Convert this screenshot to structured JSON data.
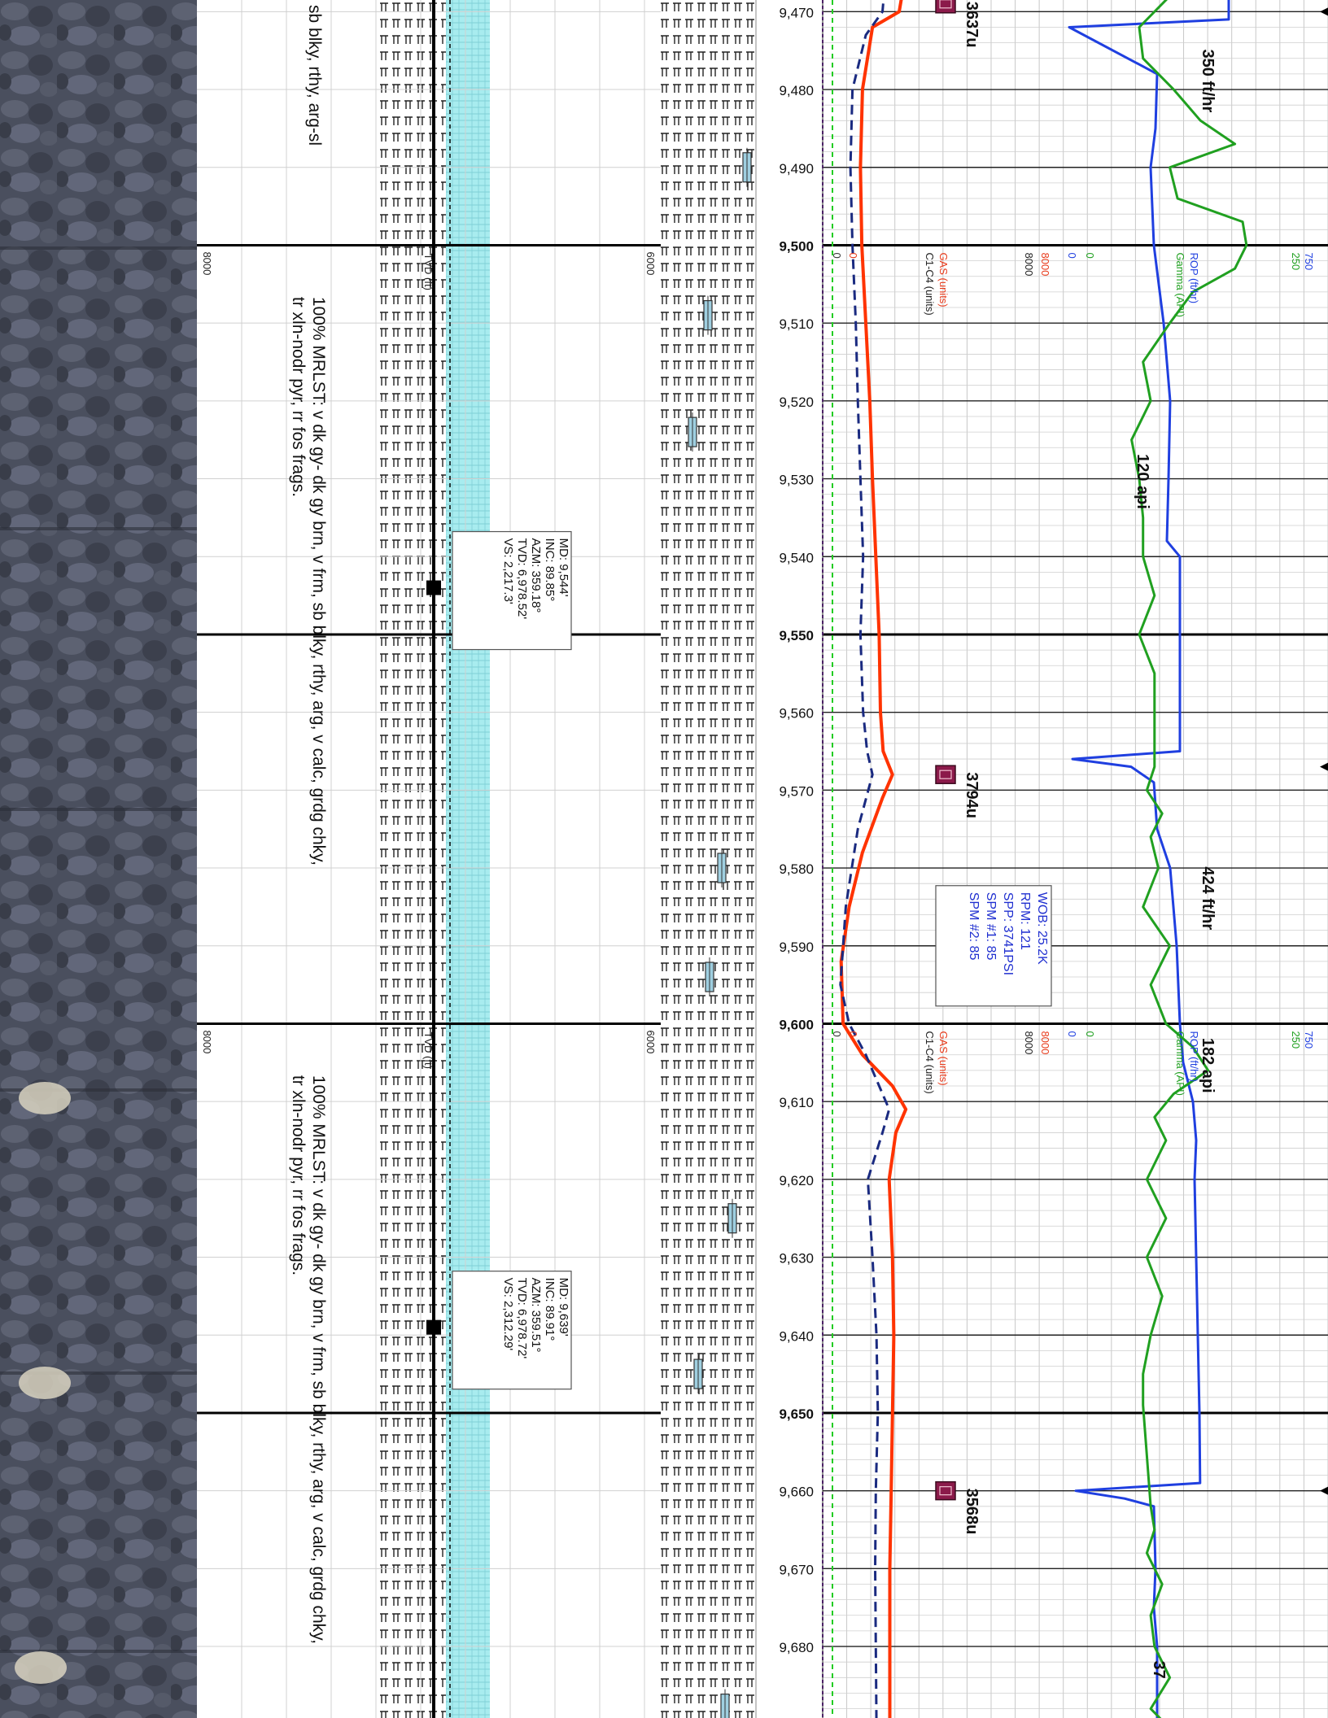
{
  "chart_data": {
    "type": "line",
    "title": "",
    "xlabel": "",
    "ylabel": "",
    "orientation": "vertical-depth-log",
    "depth_range": [
      9465,
      9690
    ],
    "depth_ticks": [
      "9,470",
      "9,480",
      "9,490",
      "9,500",
      "9,510",
      "9,520",
      "9,530",
      "9,540",
      "9,550",
      "9,560",
      "9,570",
      "9,580",
      "9,590",
      "9,600",
      "9,610",
      "9,620",
      "9,630",
      "9,640",
      "9,650",
      "9,660",
      "9,670",
      "9,680"
    ],
    "bold_depths": [
      "9,500",
      "9,550",
      "9,600",
      "9,650"
    ],
    "header_blocks": [
      {
        "depth": 9500,
        "tvd_label": "TVD (ft)",
        "tvd_left": "8000",
        "tvd_right": "6000",
        "gas_label": "GAS (units)",
        "c1c4_label": "C1-C4 (units)",
        "gas_min": "0",
        "gas_max": "8000",
        "c1c4_max": "8000",
        "rop_label": "ROP (ft/hr)",
        "gamma_label": "Gamma (API)",
        "rop_min": "0",
        "rop_max": "750",
        "gamma_max": "250"
      },
      {
        "depth": 9600,
        "tvd_label": "TVD (ft)",
        "tvd_left": "8000",
        "tvd_right": "6000",
        "gas_label": "GAS (units)",
        "c1c4_label": "C1-C4 (units)",
        "gas_min": "0",
        "gas_max": "8000",
        "c1c4_max": "8000",
        "rop_label": "ROP (ft/hr)",
        "gamma_label": "Gamma (API)",
        "rop_min": "0",
        "rop_max": "750",
        "gamma_max": "250"
      }
    ],
    "lithology_descriptions": [
      {
        "depth": 9480,
        "lines": [
          "sb blky, rthy, arg-sl"
        ]
      },
      {
        "depth": 9550,
        "lines": [
          "100% MRLST: v dk gy- dk gy brn, v frm, sb blky, rthy, arg, v calc, grdg chky,",
          "tr xln-nodr pyr, rr fos frags."
        ]
      },
      {
        "depth": 9650,
        "lines": [
          "100% MRLST: v dk gy- dk gy brn, v frm, sb blky, rthy, arg, v calc, grdg chky,",
          "tr xln-nodr pyr, rr fos frags."
        ]
      }
    ],
    "survey_boxes": [
      {
        "depth": 9544,
        "lines": [
          "MD: 9,544'",
          "INC: 89.85°",
          "AZM: 359.18°",
          "TVD: 6,978.52'",
          "VS: 2,217.3'"
        ]
      },
      {
        "depth": 9639,
        "lines": [
          "MD: 9,639'",
          "INC: 89.91°",
          "AZM: 359.51°",
          "TVD: 6,978.72'",
          "VS: 2,312.29'"
        ]
      }
    ],
    "drilling_params": {
      "depth": 9590,
      "lines": [
        "WOB: 25.2K",
        "RPM: 121",
        "SPP: 3741PSI",
        "SPM #1: 85",
        "SPM #2: 85"
      ]
    },
    "gas_peaks": [
      {
        "depth": 9469,
        "label": "3637u"
      },
      {
        "depth": 9568,
        "label": "3794u"
      },
      {
        "depth": 9660,
        "label": "3568u"
      }
    ],
    "annotations": [
      {
        "depth": 9479,
        "label": "350 ft/hr",
        "x_value": 475
      },
      {
        "depth": 9531,
        "label": "120 api",
        "x_value": 40
      },
      {
        "depth": 9584,
        "label": "424 ft/hr",
        "x_value": 460
      },
      {
        "depth": 9606,
        "label": "182 api",
        "x_value": 460
      },
      {
        "depth": 9686,
        "label": "37",
        "x_value": 310
      }
    ],
    "series": [
      {
        "name": "GAS (units)",
        "color": "#ff3300",
        "depth": [
          9465,
          9470,
          9472,
          9480,
          9490,
          9500,
          9510,
          9520,
          9530,
          9540,
          9550,
          9560,
          9565,
          9568,
          9571,
          9578,
          9585,
          9592,
          9600,
          9604,
          9608,
          9611,
          9614,
          9620,
          9630,
          9640,
          9650,
          9660,
          9670,
          9680,
          9690
        ],
        "values": [
          1100,
          1000,
          600,
          450,
          420,
          440,
          500,
          560,
          600,
          650,
          700,
          720,
          760,
          900,
          750,
          450,
          250,
          130,
          160,
          450,
          900,
          1100,
          950,
          850,
          900,
          920,
          900,
          880,
          860,
          860,
          860
        ]
      },
      {
        "name": "C1-C4 (units)",
        "color": "#1a2a80",
        "dashed": true,
        "depth": [
          9465,
          9470,
          9473,
          9480,
          9490,
          9500,
          9510,
          9520,
          9530,
          9540,
          9550,
          9560,
          9565,
          9568,
          9575,
          9585,
          9595,
          9600,
          9604,
          9608,
          9611,
          9614,
          9620,
          9630,
          9640,
          9650,
          9660,
          9670,
          9680,
          9690
        ],
        "values": [
          800,
          750,
          500,
          300,
          270,
          300,
          350,
          380,
          420,
          460,
          420,
          460,
          520,
          600,
          380,
          200,
          120,
          250,
          500,
          700,
          850,
          750,
          530,
          600,
          660,
          680,
          650,
          640,
          650,
          660
        ]
      },
      {
        "name": "ROP (ft/hr)",
        "color": "#1f3fe0",
        "depth": [
          9465,
          9470,
          9471,
          9472,
          9478,
          9485,
          9490,
          9500,
          9510,
          9520,
          9530,
          9538,
          9540,
          9550,
          9560,
          9565,
          9566,
          9567,
          9569,
          9575,
          9580,
          9585,
          9590,
          9600,
          9605,
          9610,
          9615,
          9620,
          9630,
          9640,
          9650,
          9659,
          9660,
          9661,
          9662,
          9670,
          9675,
          9680,
          9690
        ],
        "values": [
          500,
          500,
          500,
          10,
          280,
          275,
          260,
          270,
          300,
          320,
          315,
          310,
          350,
          350,
          350,
          350,
          20,
          200,
          270,
          280,
          320,
          330,
          340,
          350,
          360,
          390,
          400,
          395,
          400,
          405,
          410,
          412,
          30,
          180,
          270,
          275,
          270,
          280,
          280
        ]
      },
      {
        "name": "Gamma (API)",
        "color": "#20a020",
        "depth": [
          9465,
          9468,
          9472,
          9476,
          9480,
          9484,
          9487,
          9490,
          9494,
          9497,
          9500,
          9503,
          9506,
          9510,
          9515,
          9520,
          9525,
          9530,
          9535,
          9540,
          9545,
          9550,
          9555,
          9567,
          9570,
          9573,
          9576,
          9580,
          9585,
          9590,
          9595,
          9600,
          9603,
          9606,
          9609,
          9612,
          9615,
          9620,
          9625,
          9630,
          9635,
          9640,
          9645,
          9649,
          9662,
          9665,
          9668,
          9672,
          9676,
          9680,
          9684,
          9688,
          9690
        ],
        "values": [
          130,
          120,
          80,
          85,
          125,
          160,
          205,
          120,
          130,
          215,
          220,
          205,
          150,
          120,
          85,
          95,
          70,
          80,
          85,
          85,
          100,
          80,
          100,
          100,
          90,
          110,
          95,
          105,
          85,
          120,
          95,
          115,
          150,
          170,
          125,
          100,
          115,
          90,
          115,
          90,
          110,
          95,
          85,
          85,
          95,
          100,
          90,
          110,
          95,
          100,
          120,
          95,
          115
        ]
      }
    ],
    "tvd_track": {
      "name": "TVD",
      "depth": [
        9465,
        9690
      ],
      "values": [
        6978.5,
        6978.7
      ]
    }
  }
}
